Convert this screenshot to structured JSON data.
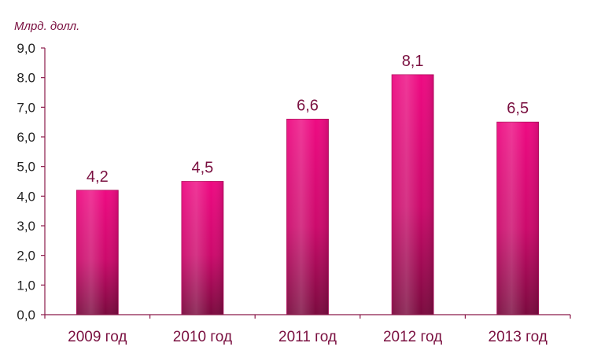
{
  "chart_data": {
    "type": "bar",
    "unit_label": "Млрд. долл.",
    "categories": [
      "2009 год",
      "2010 год",
      "2011 год",
      "2012 год",
      "2013 год"
    ],
    "values": [
      4.2,
      4.5,
      6.6,
      8.1,
      6.5
    ],
    "value_labels": [
      "4,2",
      "4,5",
      "6,6",
      "8,1",
      "6,5"
    ],
    "y_ticks": [
      "0,0",
      "1,0",
      "2,0",
      "3,0",
      "4,0",
      "5,0",
      "6,0",
      "7,0",
      "8.0",
      "9,0"
    ],
    "ylim": [
      0,
      9
    ],
    "grid": false,
    "legend": "none",
    "colors": {
      "bar_top": "#ee0a82",
      "bar_bottom": "#7a0a3e",
      "axis": "#8b1a4a",
      "label": "#7a1040"
    }
  }
}
